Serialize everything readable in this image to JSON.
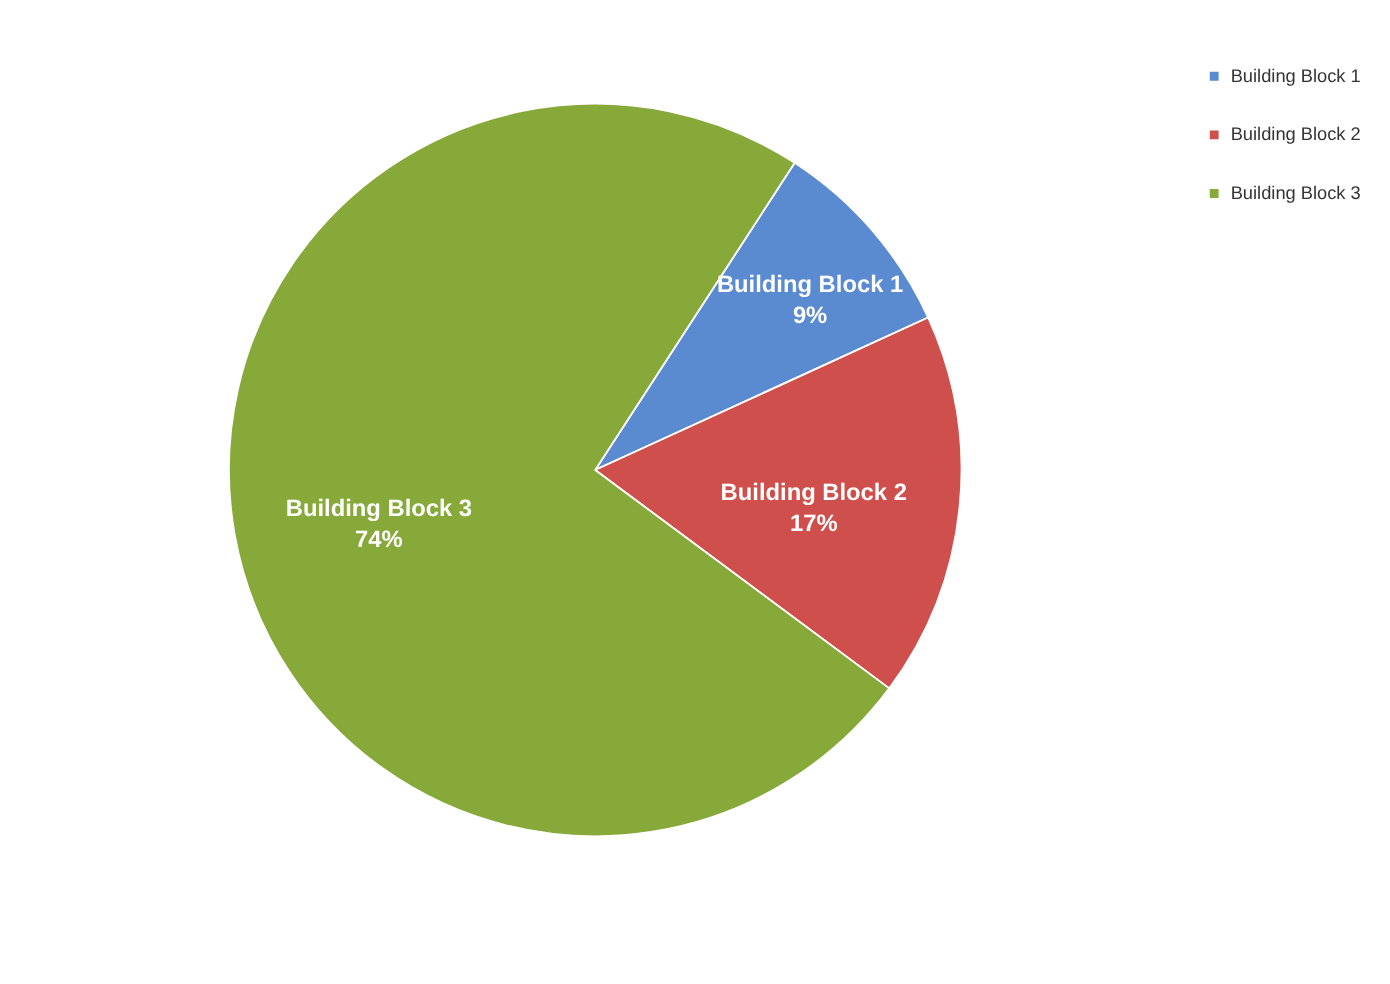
{
  "chart_data": {
    "type": "pie",
    "categories": [
      "Building Block 1",
      "Building Block 2",
      "Building Block 3"
    ],
    "values": [
      9,
      17,
      74
    ],
    "value_labels": [
      "9%",
      "17%",
      "74%"
    ],
    "colors": [
      "#5a8ad0",
      "#cf4f4c",
      "#86a93a"
    ],
    "legend": "right"
  }
}
